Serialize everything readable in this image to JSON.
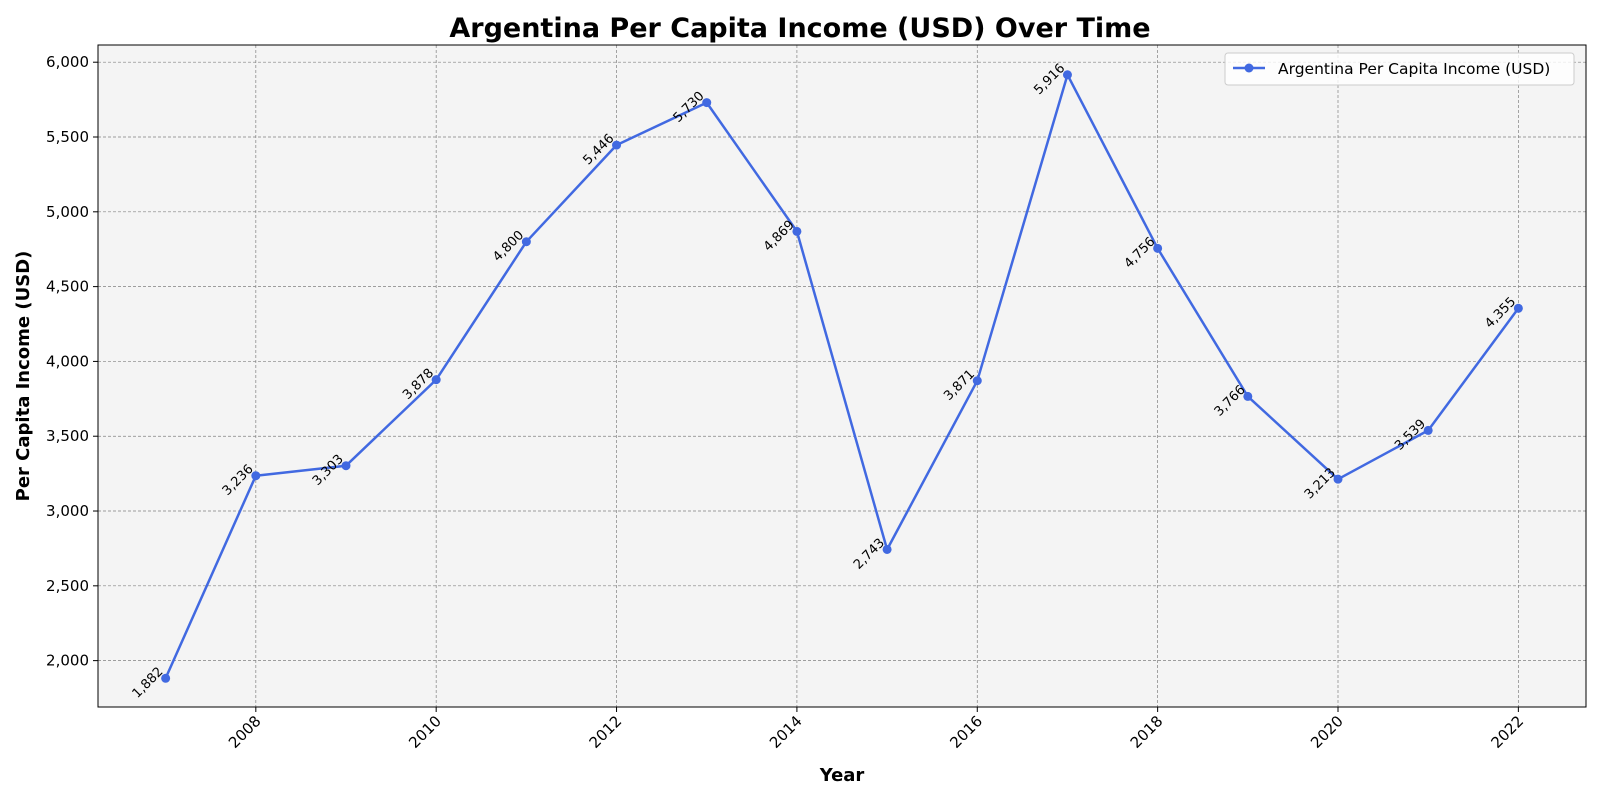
{
  "chart_data": {
    "type": "line",
    "title": "Argentina Per Capita Income (USD) Over Time",
    "xlabel": "Year",
    "ylabel": "Per Capita Income (USD)",
    "x": [
      2007,
      2008,
      2009,
      2010,
      2011,
      2012,
      2013,
      2014,
      2015,
      2016,
      2017,
      2018,
      2019,
      2020,
      2021,
      2022
    ],
    "series": [
      {
        "name": "Argentina Per Capita Income (USD)",
        "values": [
          1882,
          3236,
          3303,
          3878,
          4800,
          5446,
          5730,
          4869,
          2743,
          3871,
          5916,
          4756,
          3766,
          3213,
          3539,
          4355
        ],
        "labels": [
          "1,882",
          "3,236",
          "3,303",
          "3,878",
          "4,800",
          "5,446",
          "5,730",
          "4,869",
          "2,743",
          "3,871",
          "5,916",
          "4,756",
          "3,766",
          "3,213",
          "3,539",
          "4,355"
        ]
      }
    ],
    "xticks": [
      2008,
      2010,
      2012,
      2014,
      2016,
      2018,
      2020,
      2022
    ],
    "xtick_labels": [
      "2008",
      "2010",
      "2012",
      "2014",
      "2016",
      "2018",
      "2020",
      "2022"
    ],
    "yticks": [
      2000,
      2500,
      3000,
      3500,
      4000,
      4500,
      5000,
      5500,
      6000
    ],
    "ytick_labels": [
      "2,000",
      "2,500",
      "3,000",
      "3,500",
      "4,000",
      "4,500",
      "5,000",
      "5,500",
      "6,000"
    ],
    "xlim": [
      2006.25,
      2022.75
    ],
    "ylim": [
      1690,
      6115
    ],
    "grid": true,
    "legend_position": "top-right",
    "colors": {
      "line": "#4169e1",
      "plot_background": "#f4f4f4",
      "grid": "#808080"
    }
  }
}
